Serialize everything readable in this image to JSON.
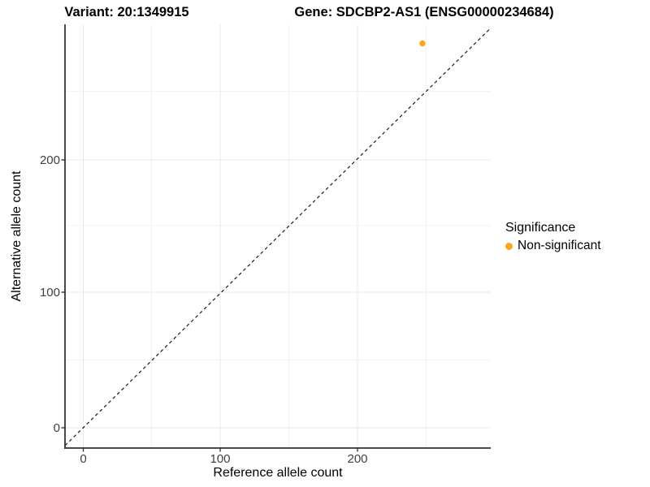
{
  "title": {
    "variant": "Variant: 20:1349915",
    "gene": "Gene: SDCBP2-AS1 (ENSG00000234684)"
  },
  "axes": {
    "x": {
      "label": "Reference allele count",
      "ticks": [
        "0",
        "100",
        "200"
      ]
    },
    "y": {
      "label": "Alternative allele count",
      "ticks": [
        "0",
        "100",
        "200"
      ]
    }
  },
  "legend": {
    "title": "Significance",
    "items": [
      {
        "label": "Non-significant",
        "color": "#FFA319"
      }
    ]
  },
  "colors": {
    "point": "#FFA319",
    "grid_major": "#e9e9e9",
    "grid_minor": "#f3f3f3",
    "axis_line": "#333333",
    "tick_text": "#404040",
    "identity_line": "#1a1a1a"
  },
  "chart_data": {
    "type": "scatter",
    "title": "Variant: 20:1349915 | Gene: SDCBP2-AS1 (ENSG00000234684)",
    "xlabel": "Reference allele count",
    "ylabel": "Alternative allele count",
    "xlim": [
      -14,
      297
    ],
    "ylim": [
      -15,
      301
    ],
    "x_ticks": [
      0,
      100,
      200
    ],
    "y_ticks": [
      0,
      100,
      200
    ],
    "grid": true,
    "legend_position": "right",
    "reference_line": {
      "type": "identity y=x",
      "style": "dashed",
      "color": "#000000"
    },
    "series": [
      {
        "name": "Non-significant",
        "color": "#FFA319",
        "points": [
          {
            "x": 247,
            "y": 287
          }
        ]
      }
    ]
  }
}
